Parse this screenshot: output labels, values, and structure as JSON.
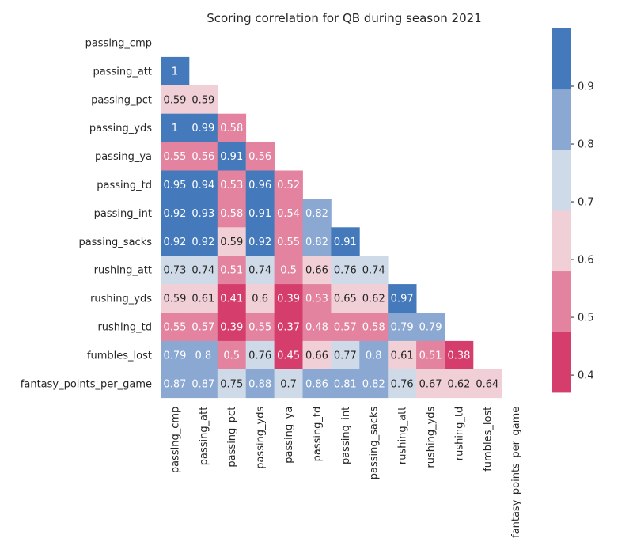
{
  "chart_data": {
    "type": "heatmap",
    "title": "Scoring correlation for QB during season 2021",
    "mask": "upper-triangle-including-diagonal",
    "rows": [
      "passing_cmp",
      "passing_att",
      "passing_pct",
      "passing_yds",
      "passing_ya",
      "passing_td",
      "passing_int",
      "passing_sacks",
      "rushing_att",
      "rushing_yds",
      "rushing_td",
      "fumbles_lost",
      "fantasy_points_per_game"
    ],
    "columns": [
      "passing_cmp",
      "passing_att",
      "passing_pct",
      "passing_yds",
      "passing_ya",
      "passing_td",
      "passing_int",
      "passing_sacks",
      "rushing_att",
      "rushing_yds",
      "rushing_td",
      "fumbles_lost",
      "fantasy_points_per_game"
    ],
    "values": [
      [],
      [
        1
      ],
      [
        0.59,
        0.59
      ],
      [
        1,
        0.99,
        0.58
      ],
      [
        0.55,
        0.56,
        0.91,
        0.56
      ],
      [
        0.95,
        0.94,
        0.53,
        0.96,
        0.52
      ],
      [
        0.92,
        0.93,
        0.58,
        0.91,
        0.54,
        0.82
      ],
      [
        0.92,
        0.92,
        0.59,
        0.92,
        0.55,
        0.82,
        0.91
      ],
      [
        0.73,
        0.74,
        0.51,
        0.74,
        0.5,
        0.66,
        0.76,
        0.74
      ],
      [
        0.59,
        0.61,
        0.41,
        0.6,
        0.39,
        0.53,
        0.65,
        0.62,
        0.97
      ],
      [
        0.55,
        0.57,
        0.39,
        0.55,
        0.37,
        0.48,
        0.57,
        0.58,
        0.79,
        0.79
      ],
      [
        0.79,
        0.8,
        0.5,
        0.76,
        0.45,
        0.66,
        0.77,
        0.8,
        0.61,
        0.51,
        0.38
      ],
      [
        0.87,
        0.87,
        0.75,
        0.88,
        0.7,
        0.86,
        0.81,
        0.82,
        0.76,
        0.67,
        0.62,
        0.64
      ]
    ],
    "colorbar": {
      "range": [
        0.37,
        1.0
      ],
      "ticks": [
        "0.4",
        "0.5",
        "0.6",
        "0.7",
        "0.8",
        "0.9"
      ],
      "colors": [
        "#d53e6c",
        "#e3839f",
        "#f0cfd7",
        "#cfdae8",
        "#8aa8d1",
        "#4479bb"
      ]
    }
  }
}
